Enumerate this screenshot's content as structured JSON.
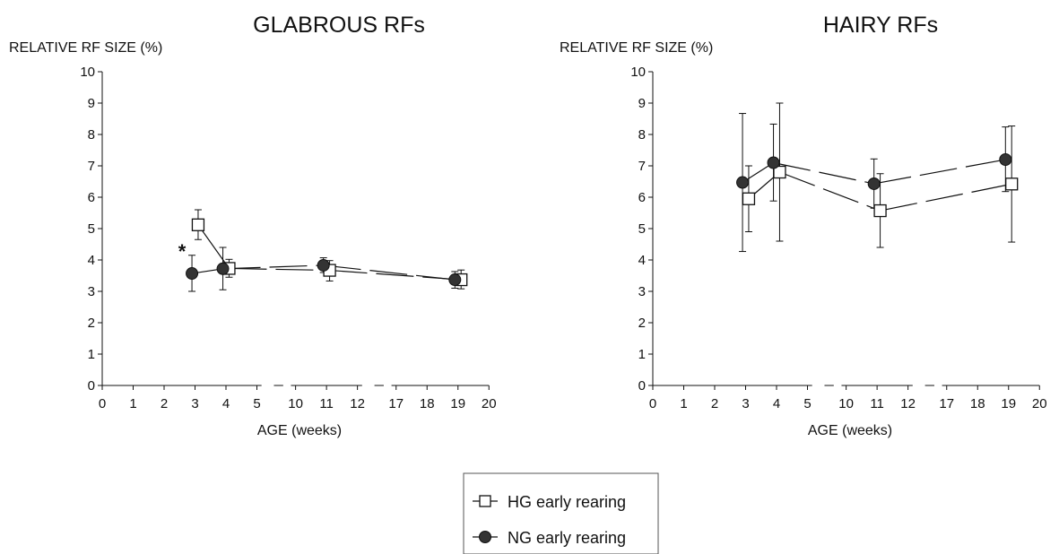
{
  "chart_data": [
    {
      "type": "line",
      "title": "GLABROUS RFs",
      "ylabel": "RELATIVE RF SIZE (%)",
      "xlabel": "AGE (weeks)",
      "ylim": [
        0,
        10
      ],
      "yticks": [
        "0",
        "1",
        "2",
        "3",
        "4",
        "5",
        "6",
        "7",
        "8",
        "9",
        "10"
      ],
      "xticks": [
        "0",
        "1",
        "2",
        "3",
        "4",
        "5",
        "10",
        "11",
        "12",
        "17",
        "18",
        "19",
        "20"
      ],
      "annotation": "*",
      "series": [
        {
          "name": "HG early rearing",
          "marker": "open-square",
          "points": [
            {
              "x": 3.1,
              "y": 5.12,
              "err_low": 4.65,
              "err_high": 5.6
            },
            {
              "x": 4.1,
              "y": 3.73,
              "err_low": 3.45,
              "err_high": 4.02
            },
            {
              "x": 11.1,
              "y": 3.67,
              "err_low": 3.33,
              "err_high": 3.98
            },
            {
              "x": 19.1,
              "y": 3.37,
              "err_low": 3.08,
              "err_high": 3.68
            }
          ]
        },
        {
          "name": "NG early rearing",
          "marker": "filled-circle",
          "points": [
            {
              "x": 2.9,
              "y": 3.57,
              "err_low": 3.0,
              "err_high": 4.15
            },
            {
              "x": 3.9,
              "y": 3.72,
              "err_low": 3.05,
              "err_high": 4.4
            },
            {
              "x": 10.9,
              "y": 3.83,
              "err_low": 3.6,
              "err_high": 4.07
            },
            {
              "x": 18.9,
              "y": 3.37,
              "err_low": 3.1,
              "err_high": 3.63
            }
          ]
        }
      ]
    },
    {
      "type": "line",
      "title": "HAIRY RFs",
      "ylabel": "RELATIVE RF SIZE (%)",
      "xlabel": "AGE (weeks)",
      "ylim": [
        0,
        10
      ],
      "yticks": [
        "0",
        "1",
        "2",
        "3",
        "4",
        "5",
        "6",
        "7",
        "8",
        "9",
        "10"
      ],
      "xticks": [
        "0",
        "1",
        "2",
        "3",
        "4",
        "5",
        "10",
        "11",
        "12",
        "17",
        "18",
        "19",
        "20"
      ],
      "series": [
        {
          "name": "HG early rearing",
          "marker": "open-square",
          "points": [
            {
              "x": 3.1,
              "y": 5.95,
              "err_low": 4.9,
              "err_high": 7.0
            },
            {
              "x": 4.1,
              "y": 6.8,
              "err_low": 4.6,
              "err_high": 9.0
            },
            {
              "x": 11.1,
              "y": 5.57,
              "err_low": 4.4,
              "err_high": 6.75
            },
            {
              "x": 19.1,
              "y": 6.42,
              "err_low": 4.57,
              "err_high": 8.27
            }
          ]
        },
        {
          "name": "NG early rearing",
          "marker": "filled-circle",
          "points": [
            {
              "x": 2.9,
              "y": 6.47,
              "err_low": 4.27,
              "err_high": 8.67
            },
            {
              "x": 3.9,
              "y": 7.1,
              "err_low": 5.88,
              "err_high": 8.33
            },
            {
              "x": 10.9,
              "y": 6.43,
              "err_low": 5.65,
              "err_high": 7.22
            },
            {
              "x": 18.9,
              "y": 7.2,
              "err_low": 6.18,
              "err_high": 8.24
            }
          ]
        }
      ]
    }
  ],
  "legend": {
    "items": [
      {
        "label": "HG early rearing",
        "marker": "open-square"
      },
      {
        "label": "NG early rearing",
        "marker": "filled-circle"
      }
    ]
  },
  "colors": {
    "ink": "#111111",
    "filled_marker": "#333333",
    "open_marker_fill": "#ffffff"
  }
}
